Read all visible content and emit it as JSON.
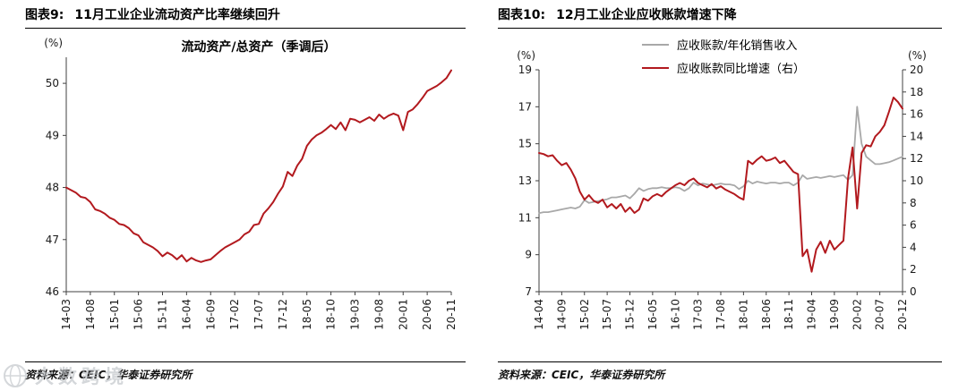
{
  "panels": {
    "left": {
      "label": "图表9:",
      "title": "11月工业企业流动资产比率继续回升",
      "source": "资料来源：CEIC，华泰证券研究所"
    },
    "right": {
      "label": "图表10:",
      "title": "12月工业企业应收账款增速下降",
      "source": "资料来源：CEIC，华泰证券研究所"
    }
  },
  "watermark": {
    "icon": "globe-logo-icon",
    "text": "大数跨境"
  },
  "colors": {
    "series_red": "#b2191e",
    "series_gray": "#a8a8a8",
    "axis": "#404040"
  },
  "chart_data": [
    {
      "type": "line",
      "title": "流动资产/总资产（季调后）",
      "unit_left": "(%)",
      "ylim": [
        46,
        50.5
      ],
      "yticks": [
        46,
        47,
        48,
        49,
        50
      ],
      "grid": false,
      "xtick_step": 5,
      "xtick_labels": [
        "14-03",
        "14-08",
        "15-01",
        "15-06",
        "15-11",
        "16-04",
        "16-09",
        "17-02",
        "17-07",
        "17-12",
        "18-05",
        "18-10",
        "19-03",
        "19-08",
        "20-01",
        "20-06",
        "20-11"
      ],
      "series": [
        {
          "name": "流动资产/总资产（季调后）",
          "axis": "left",
          "color": "#b2191e",
          "width": 2,
          "values": [
            48.0,
            47.95,
            47.9,
            47.82,
            47.8,
            47.72,
            47.58,
            47.55,
            47.5,
            47.42,
            47.38,
            47.3,
            47.28,
            47.22,
            47.12,
            47.08,
            46.95,
            46.9,
            46.85,
            46.78,
            46.68,
            46.75,
            46.7,
            46.62,
            46.7,
            46.58,
            46.65,
            46.6,
            46.57,
            46.6,
            46.62,
            46.7,
            46.78,
            46.85,
            46.9,
            46.95,
            47.0,
            47.1,
            47.15,
            47.28,
            47.3,
            47.5,
            47.6,
            47.72,
            47.88,
            48.02,
            48.3,
            48.22,
            48.42,
            48.55,
            48.8,
            48.92,
            49.0,
            49.05,
            49.12,
            49.2,
            49.12,
            49.25,
            49.1,
            49.32,
            49.3,
            49.25,
            49.3,
            49.35,
            49.28,
            49.4,
            49.32,
            49.38,
            49.42,
            49.38,
            49.1,
            49.45,
            49.5,
            49.6,
            49.72,
            49.85,
            49.9,
            49.95,
            50.02,
            50.1,
            50.25
          ]
        }
      ]
    },
    {
      "type": "line",
      "unit_left": "(%)",
      "unit_right": "(%)",
      "ylim": [
        7,
        19
      ],
      "yticks": [
        7,
        9,
        11,
        13,
        15,
        17,
        19
      ],
      "y2lim": [
        0,
        20
      ],
      "y2ticks": [
        0,
        2,
        4,
        6,
        8,
        10,
        12,
        14,
        16,
        18,
        20
      ],
      "grid": false,
      "xtick_step": 5,
      "xtick_labels": [
        "14-04",
        "14-09",
        "15-02",
        "15-07",
        "15-12",
        "16-05",
        "16-10",
        "17-03",
        "17-08",
        "18-01",
        "18-06",
        "18-11",
        "19-04",
        "19-09",
        "20-02",
        "20-07",
        "20-12"
      ],
      "legend": [
        {
          "label": "应收账款/年化销售收入",
          "color": "#a8a8a8"
        },
        {
          "label": "应收账款同比增速（右）",
          "color": "#b2191e"
        }
      ],
      "series": [
        {
          "name": "应收账款/年化销售收入",
          "axis": "left",
          "color": "#a8a8a8",
          "width": 1.8,
          "values": [
            11.25,
            11.3,
            11.3,
            11.35,
            11.4,
            11.45,
            11.5,
            11.55,
            11.5,
            11.6,
            11.95,
            11.8,
            11.85,
            11.9,
            11.95,
            12.0,
            12.1,
            12.1,
            12.15,
            12.2,
            12.05,
            12.3,
            12.6,
            12.45,
            12.55,
            12.6,
            12.6,
            12.65,
            12.6,
            12.6,
            12.65,
            12.6,
            12.45,
            12.6,
            12.9,
            12.75,
            12.85,
            12.8,
            12.75,
            12.8,
            12.85,
            12.8,
            12.8,
            12.75,
            12.55,
            12.7,
            13.0,
            12.85,
            12.95,
            12.9,
            12.85,
            12.9,
            12.9,
            12.85,
            12.9,
            12.9,
            12.75,
            12.9,
            13.3,
            13.1,
            13.15,
            13.2,
            13.15,
            13.2,
            13.25,
            13.2,
            13.25,
            13.3,
            13.05,
            13.3,
            17.0,
            15.0,
            14.3,
            14.1,
            13.9,
            13.9,
            13.95,
            14.0,
            14.1,
            14.2,
            14.3
          ]
        },
        {
          "name": "应收账款同比增速（右）",
          "axis": "right",
          "color": "#b2191e",
          "width": 2,
          "values": [
            12.5,
            12.4,
            12.2,
            12.3,
            11.8,
            11.4,
            11.6,
            11.0,
            10.2,
            9.0,
            8.3,
            8.7,
            8.2,
            8.0,
            8.3,
            7.6,
            7.9,
            7.5,
            7.9,
            7.2,
            7.6,
            7.1,
            7.4,
            8.4,
            8.2,
            8.6,
            8.8,
            8.6,
            9.0,
            9.3,
            9.6,
            9.8,
            9.6,
            10.0,
            10.2,
            9.8,
            9.6,
            9.4,
            9.7,
            9.3,
            9.5,
            9.2,
            9.0,
            8.8,
            8.5,
            8.3,
            11.8,
            11.5,
            11.9,
            12.2,
            11.8,
            11.9,
            12.1,
            11.6,
            11.8,
            11.3,
            10.8,
            10.6,
            3.2,
            3.8,
            1.8,
            3.8,
            4.5,
            3.5,
            4.6,
            3.8,
            4.2,
            4.6,
            10.2,
            13.0,
            7.5,
            12.5,
            13.2,
            13.1,
            14.0,
            14.4,
            15.0,
            16.2,
            17.5,
            17.1,
            16.5
          ]
        }
      ]
    }
  ]
}
